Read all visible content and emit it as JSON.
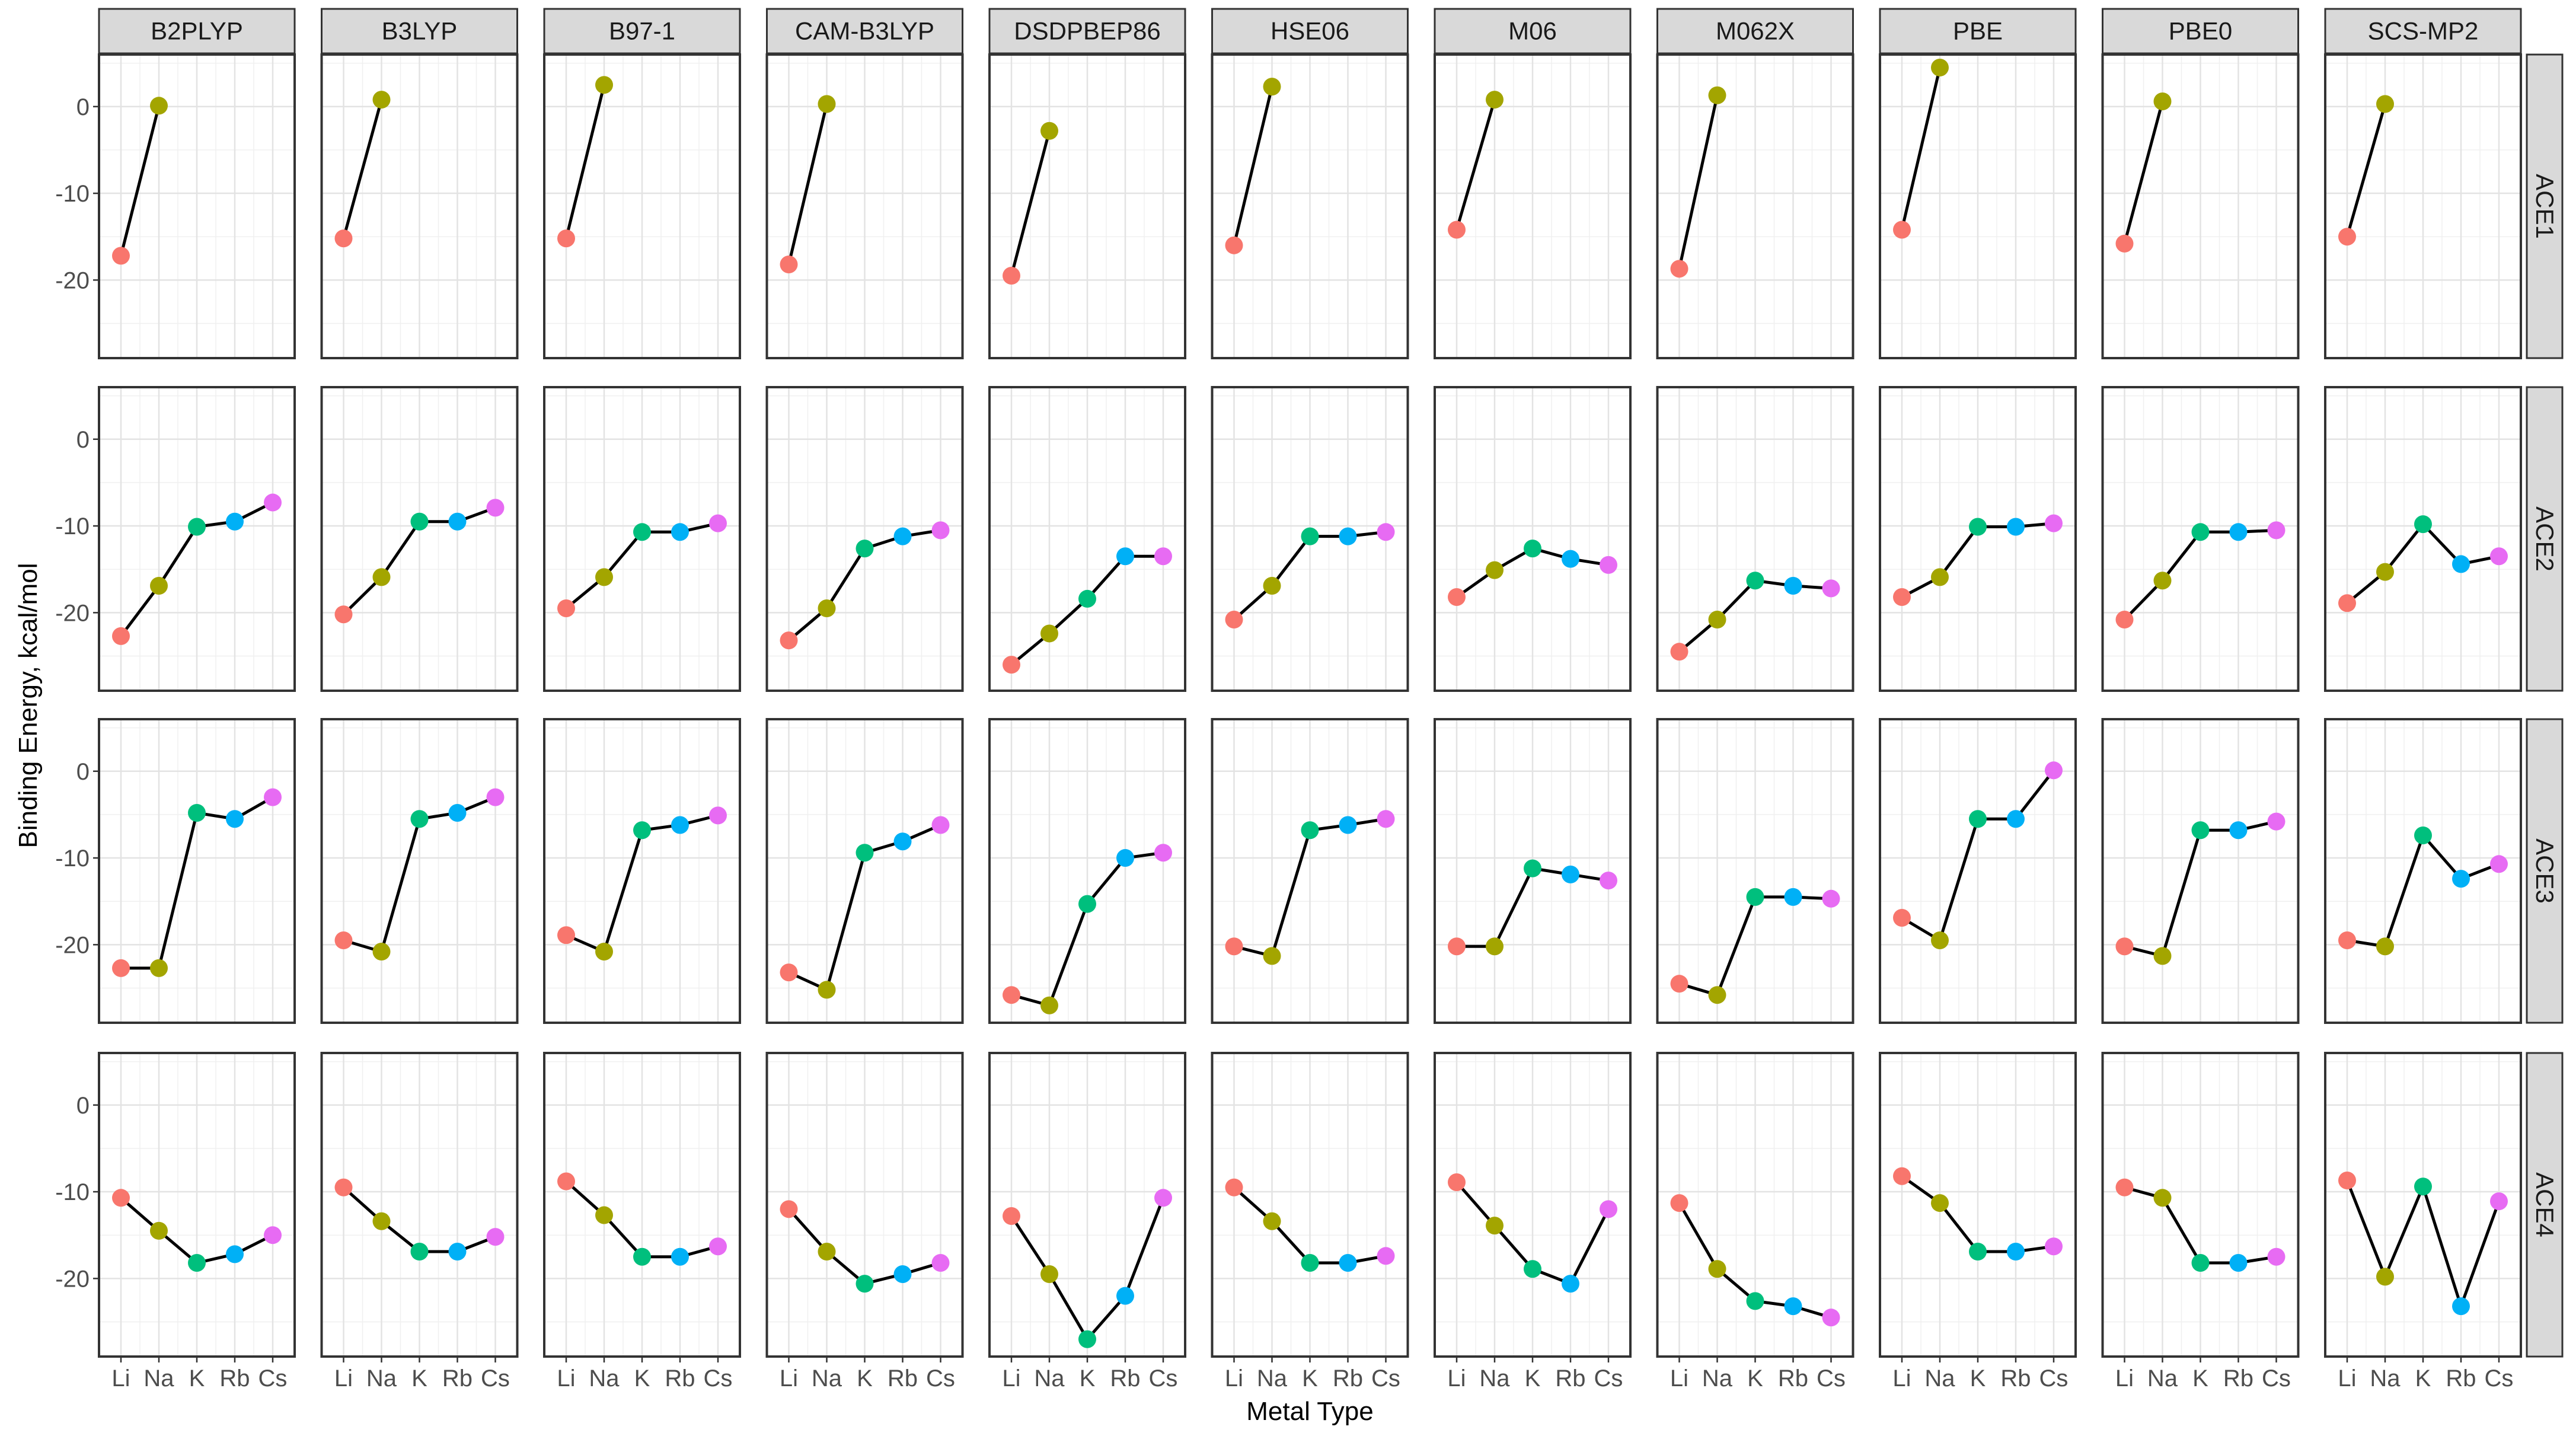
{
  "chart_data": {
    "type": "line",
    "facet_columns": [
      "B2PLYP",
      "B3LYP",
      "B97-1",
      "CAM-B3LYP",
      "DSDPBEP86",
      "HSE06",
      "M06",
      "M062X",
      "PBE",
      "PBE0",
      "SCS-MP2"
    ],
    "facet_rows": [
      "ACE1",
      "ACE2",
      "ACE3",
      "ACE4"
    ],
    "categories": [
      "Li",
      "Na",
      "K",
      "Rb",
      "Cs"
    ],
    "xlabel": "Metal Type",
    "ylabel": "Binding Energy, kcal/mol",
    "ylim": [
      -29,
      6
    ],
    "yticks": [
      0,
      -10,
      -20
    ],
    "grid": true,
    "point_colors": {
      "Li": "#F8766D",
      "Na": "#A3A500",
      "K": "#00BF7D",
      "Rb": "#00B0F6",
      "Cs": "#E76BF3"
    },
    "line_color": "#000000",
    "panels": {
      "ACE1": {
        "B2PLYP": [
          -17.2,
          0.1,
          null,
          null,
          null
        ],
        "B3LYP": [
          -15.2,
          0.8,
          null,
          null,
          null
        ],
        "B97-1": [
          -15.2,
          2.5,
          null,
          null,
          null
        ],
        "CAM-B3LYP": [
          -18.2,
          0.3,
          null,
          null,
          null
        ],
        "DSDPBEP86": [
          -19.5,
          -2.8,
          null,
          null,
          null
        ],
        "HSE06": [
          -16.0,
          2.3,
          null,
          null,
          null
        ],
        "M06": [
          -14.2,
          0.8,
          null,
          null,
          null
        ],
        "M062X": [
          -18.7,
          1.3,
          null,
          null,
          null
        ],
        "PBE": [
          -14.2,
          4.5,
          null,
          null,
          null
        ],
        "PBE0": [
          -15.8,
          0.6,
          null,
          null,
          null
        ],
        "SCS-MP2": [
          -15.0,
          0.3,
          null,
          null,
          null
        ]
      },
      "ACE2": {
        "B2PLYP": [
          -22.7,
          -16.9,
          -10.1,
          -9.5,
          -7.3
        ],
        "B3LYP": [
          -20.2,
          -15.9,
          -9.5,
          -9.5,
          -7.9
        ],
        "B97-1": [
          -19.5,
          -15.9,
          -10.7,
          -10.7,
          -9.7
        ],
        "CAM-B3LYP": [
          -23.2,
          -19.5,
          -12.6,
          -11.2,
          -10.5
        ],
        "DSDPBEP86": [
          -26.0,
          -22.4,
          -18.4,
          -13.5,
          -13.5
        ],
        "HSE06": [
          -20.8,
          -16.9,
          -11.2,
          -11.2,
          -10.7
        ],
        "M06": [
          -18.2,
          -15.1,
          -12.6,
          -13.8,
          -14.5
        ],
        "M062X": [
          -24.5,
          -20.8,
          -16.3,
          -16.9,
          -17.2
        ],
        "PBE": [
          -18.2,
          -15.9,
          -10.1,
          -10.1,
          -9.7
        ],
        "PBE0": [
          -20.8,
          -16.3,
          -10.7,
          -10.7,
          -10.5
        ],
        "SCS-MP2": [
          -18.9,
          -15.3,
          -9.8,
          -14.4,
          -13.5
        ]
      },
      "ACE3": {
        "B2PLYP": [
          -22.7,
          -22.7,
          -4.8,
          -5.5,
          -3.0
        ],
        "B3LYP": [
          -19.5,
          -20.8,
          -5.5,
          -4.8,
          -3.0
        ],
        "B97-1": [
          -18.9,
          -20.8,
          -6.8,
          -6.2,
          -5.1
        ],
        "CAM-B3LYP": [
          -23.2,
          -25.2,
          -9.4,
          -8.1,
          -6.2
        ],
        "DSDPBEP86": [
          -25.8,
          -27.0,
          -15.3,
          -10.0,
          -9.4
        ],
        "HSE06": [
          -20.2,
          -21.3,
          -6.8,
          -6.2,
          -5.5
        ],
        "M06": [
          -20.2,
          -20.2,
          -11.2,
          -11.9,
          -12.6
        ],
        "M062X": [
          -24.5,
          -25.8,
          -14.5,
          -14.5,
          -14.7
        ],
        "PBE": [
          -16.9,
          -19.5,
          -5.5,
          -5.5,
          0.1
        ],
        "PBE0": [
          -20.2,
          -21.3,
          -6.8,
          -6.8,
          -5.8
        ],
        "SCS-MP2": [
          -19.5,
          -20.2,
          -7.4,
          -12.4,
          -10.7
        ]
      },
      "ACE4": {
        "B2PLYP": [
          -10.7,
          -14.5,
          -18.2,
          -17.2,
          -15.0
        ],
        "B3LYP": [
          -9.5,
          -13.4,
          -16.9,
          -16.9,
          -15.2
        ],
        "B97-1": [
          -8.8,
          -12.7,
          -17.5,
          -17.5,
          -16.3
        ],
        "CAM-B3LYP": [
          -12.0,
          -16.9,
          -20.6,
          -19.5,
          -18.2
        ],
        "DSDPBEP86": [
          -12.8,
          -19.5,
          -27.0,
          -22.0,
          -10.7
        ],
        "HSE06": [
          -9.5,
          -13.4,
          -18.2,
          -18.2,
          -17.4
        ],
        "M06": [
          -8.9,
          -13.9,
          -18.9,
          -20.6,
          -12.0
        ],
        "M062X": [
          -11.3,
          -18.9,
          -22.6,
          -23.2,
          -24.5
        ],
        "PBE": [
          -8.2,
          -11.3,
          -16.9,
          -16.9,
          -16.3
        ],
        "PBE0": [
          -9.5,
          -10.7,
          -18.2,
          -18.2,
          -17.5
        ],
        "SCS-MP2": [
          -8.7,
          -19.8,
          -9.4,
          -23.2,
          -11.1
        ]
      }
    }
  }
}
